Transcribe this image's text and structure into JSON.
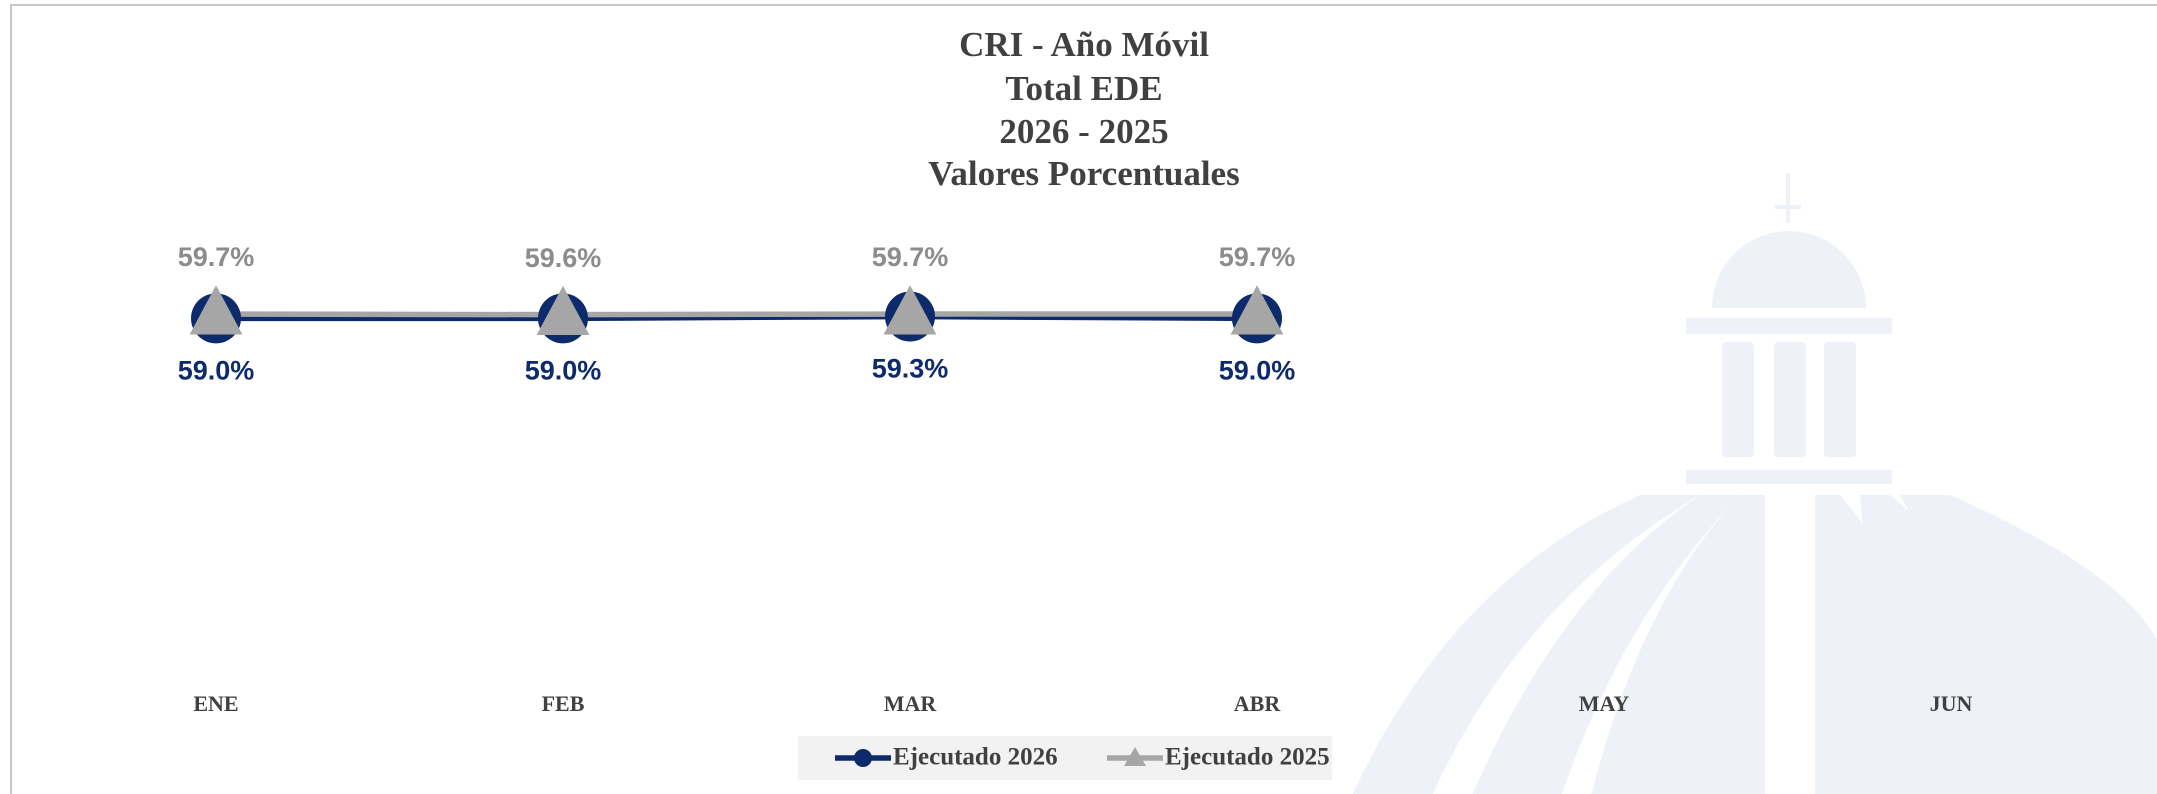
{
  "chart_data": {
    "type": "line",
    "title": "CRI - Año Móvil",
    "subtitle": [
      "Total EDE",
      "2026 - 2025",
      "Valores Porcentuales"
    ],
    "categories": [
      "ENE",
      "FEB",
      "MAR",
      "ABR",
      "MAY",
      "JUN"
    ],
    "ylim": [
      0,
      75
    ],
    "series": [
      {
        "name": "Ejecutado 2026",
        "color": "#0d2a6b",
        "marker": "circle",
        "values": [
          59.0,
          59.0,
          59.3,
          59.0,
          null,
          null
        ],
        "value_labels": [
          "59.0%",
          "59.0%",
          "59.3%",
          "59.0%",
          null,
          null
        ]
      },
      {
        "name": "Ejecutado 2025",
        "color": "#a6a6a6",
        "marker": "triangle",
        "values": [
          59.7,
          59.6,
          59.7,
          59.7,
          null,
          null
        ],
        "value_labels": [
          "59.7%",
          "59.6%",
          "59.7%",
          "59.7%",
          null,
          null
        ]
      }
    ]
  }
}
